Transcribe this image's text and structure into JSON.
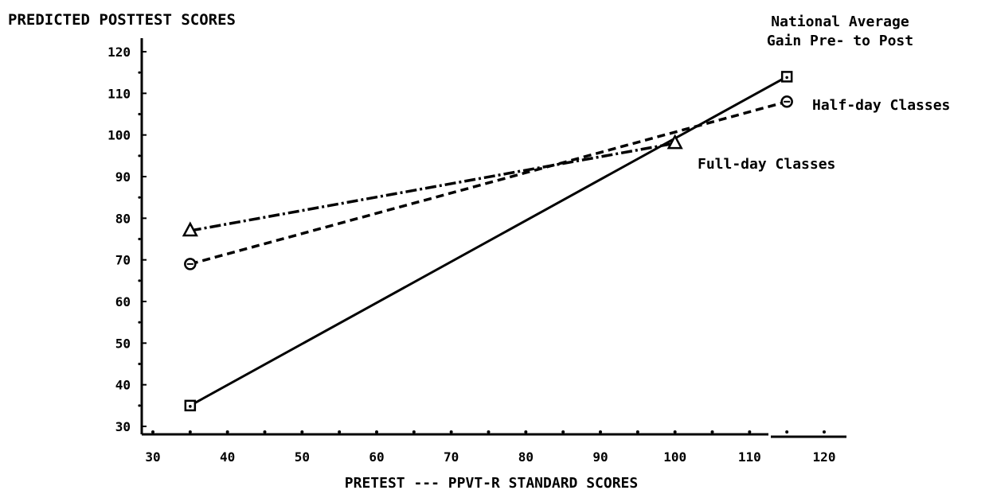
{
  "chart_data": {
    "type": "line",
    "title": "PREDICTED POSTTEST SCORES",
    "xlabel": "PRETEST --- PPVT-R STANDARD SCORES",
    "ylabel": "",
    "xlim": [
      30,
      120
    ],
    "ylim": [
      30,
      120
    ],
    "xticks": [
      30,
      40,
      50,
      60,
      70,
      80,
      90,
      100,
      110,
      120
    ],
    "yticks": [
      30,
      40,
      50,
      60,
      70,
      80,
      90,
      100,
      110,
      120
    ],
    "grid": false,
    "series": [
      {
        "name": "National Average Gain Pre- to Post",
        "label_lines": [
          "National Average",
          "Gain Pre- to Post"
        ],
        "marker": "square",
        "line_style": "solid",
        "x": [
          35,
          115
        ],
        "y": [
          35,
          114
        ]
      },
      {
        "name": "Half-day Classes",
        "label_lines": [
          "Half-day Classes"
        ],
        "marker": "circle",
        "line_style": "dashed",
        "x": [
          35,
          115
        ],
        "y": [
          69,
          108
        ]
      },
      {
        "name": "Full-day Classes",
        "label_lines": [
          "Full-day Classes"
        ],
        "marker": "triangle",
        "line_style": "dash-dot",
        "x": [
          35,
          100
        ],
        "y": [
          77,
          98
        ]
      }
    ]
  }
}
